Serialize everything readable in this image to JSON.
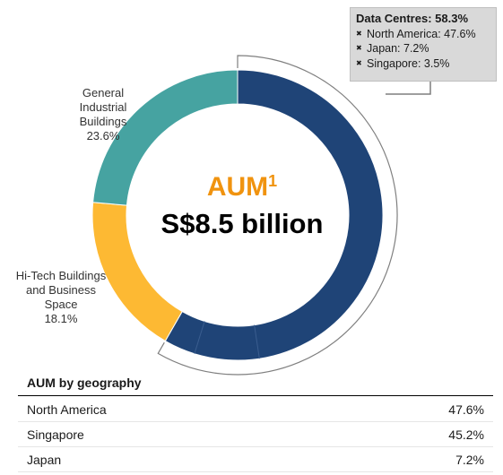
{
  "chart_data": {
    "type": "pie",
    "subtype": "donut",
    "center_title": "AUM",
    "center_title_sup": "1",
    "center_value": "S$8.5 billion",
    "slices": [
      {
        "label": "Data Centres",
        "value": 58.3,
        "color": "#1f4477"
      },
      {
        "label": "Hi-Tech Buildings and Business Space",
        "value": 18.1,
        "color": "#fdb933"
      },
      {
        "label": "General Industrial Buildings",
        "value": 23.6,
        "color": "#46a3a1"
      }
    ],
    "data_centres_breakdown": [
      {
        "label": "North America",
        "value": 47.6
      },
      {
        "label": "Japan",
        "value": 7.2
      },
      {
        "label": "Singapore",
        "value": 3.5
      }
    ]
  },
  "labels": {
    "general": [
      "General",
      "Industrial",
      "Buildings",
      "23.6%"
    ],
    "hitech": [
      "Hi-Tech Buildings",
      "and Business",
      "Space",
      "18.1%"
    ]
  },
  "callout": {
    "title": "Data Centres: 58.3%",
    "items": [
      "North America: 47.6%",
      "Japan: 7.2%",
      "Singapore: 3.5%"
    ],
    "bullet_icon": "✖"
  },
  "geography": {
    "title": "AUM by geography",
    "rows": [
      {
        "name": "North America",
        "value": "47.6%"
      },
      {
        "name": "Singapore",
        "value": "45.2%"
      },
      {
        "name": "Japan",
        "value": "7.2%"
      }
    ]
  }
}
